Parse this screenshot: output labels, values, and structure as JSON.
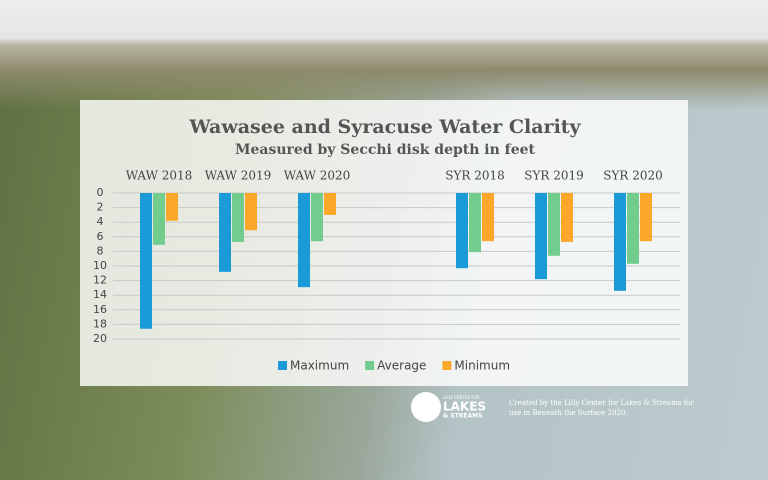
{
  "chart_data": {
    "type": "bar",
    "title": "Wawasee and Syracuse Water Clarity",
    "subtitle": "Measured by Secchi disk depth in feet",
    "categories": [
      "WAW 2018",
      "WAW 2019",
      "WAW 2020",
      "SYR 2018",
      "SYR  2019",
      "SYR 2020"
    ],
    "series": [
      {
        "name": "Maximum",
        "color": "#1b9ad8",
        "values": [
          18.6,
          10.8,
          12.9,
          10.3,
          11.8,
          13.4
        ]
      },
      {
        "name": "Average",
        "color": "#72cc8e",
        "values": [
          7.1,
          6.7,
          6.6,
          8.1,
          8.6,
          9.7
        ]
      },
      {
        "name": "Minimum",
        "color": "#fba72a",
        "values": [
          3.8,
          5.1,
          3.0,
          6.6,
          6.7,
          6.6
        ]
      }
    ],
    "ylim": [
      0,
      20
    ],
    "yticks": [
      0,
      2,
      4,
      6,
      8,
      10,
      12,
      14,
      16,
      18,
      20
    ],
    "y_inverted": true,
    "grid": true,
    "legend": "bottom"
  },
  "logo": {
    "top": "LILLY CENTER FOR",
    "main": "LAKES",
    "bottom": "& STREAMS"
  },
  "credit": [
    "Created by the Lilly Center for Lakes & Streams for",
    "use in Beneath the Surface 2020."
  ]
}
